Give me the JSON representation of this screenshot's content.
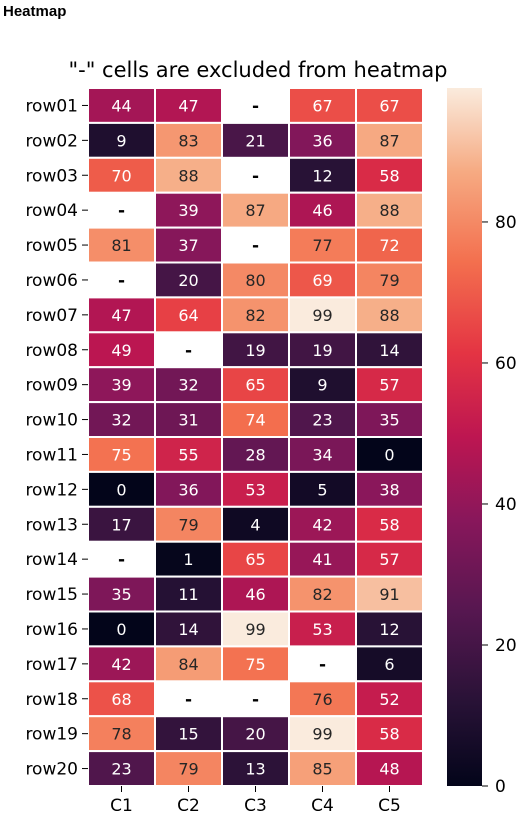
{
  "page_label": "Heatmap",
  "chart_data": {
    "type": "heatmap",
    "title": "\"-\" cells are excluded from heatmap",
    "xlabel": "",
    "ylabel": "",
    "columns": [
      "C1",
      "C2",
      "C3",
      "C4",
      "C5"
    ],
    "rows": [
      "row01",
      "row02",
      "row03",
      "row04",
      "row05",
      "row06",
      "row07",
      "row08",
      "row09",
      "row10",
      "row11",
      "row12",
      "row13",
      "row14",
      "row15",
      "row16",
      "row17",
      "row18",
      "row19",
      "row20"
    ],
    "values": [
      [
        44,
        47,
        null,
        67,
        67
      ],
      [
        9,
        83,
        21,
        36,
        87
      ],
      [
        70,
        88,
        null,
        12,
        58
      ],
      [
        null,
        39,
        87,
        46,
        88
      ],
      [
        81,
        37,
        null,
        77,
        72
      ],
      [
        null,
        20,
        80,
        69,
        79
      ],
      [
        47,
        64,
        82,
        99,
        88
      ],
      [
        49,
        null,
        19,
        19,
        14
      ],
      [
        39,
        32,
        65,
        9,
        57
      ],
      [
        32,
        31,
        74,
        23,
        35
      ],
      [
        75,
        55,
        28,
        34,
        0
      ],
      [
        0,
        36,
        53,
        5,
        38
      ],
      [
        17,
        79,
        4,
        42,
        58
      ],
      [
        null,
        1,
        65,
        41,
        57
      ],
      [
        35,
        11,
        46,
        82,
        91
      ],
      [
        0,
        14,
        99,
        53,
        12
      ],
      [
        42,
        84,
        75,
        null,
        6
      ],
      [
        68,
        null,
        null,
        76,
        52
      ],
      [
        78,
        15,
        20,
        99,
        58
      ],
      [
        23,
        79,
        13,
        85,
        48
      ]
    ],
    "excluded_marker": "-",
    "colormap": "rocket",
    "vmin": 0,
    "vmax": 99,
    "colorbar_ticks": [
      0,
      20,
      40,
      60,
      80
    ],
    "grid": true,
    "legend": "colorbar-right"
  }
}
